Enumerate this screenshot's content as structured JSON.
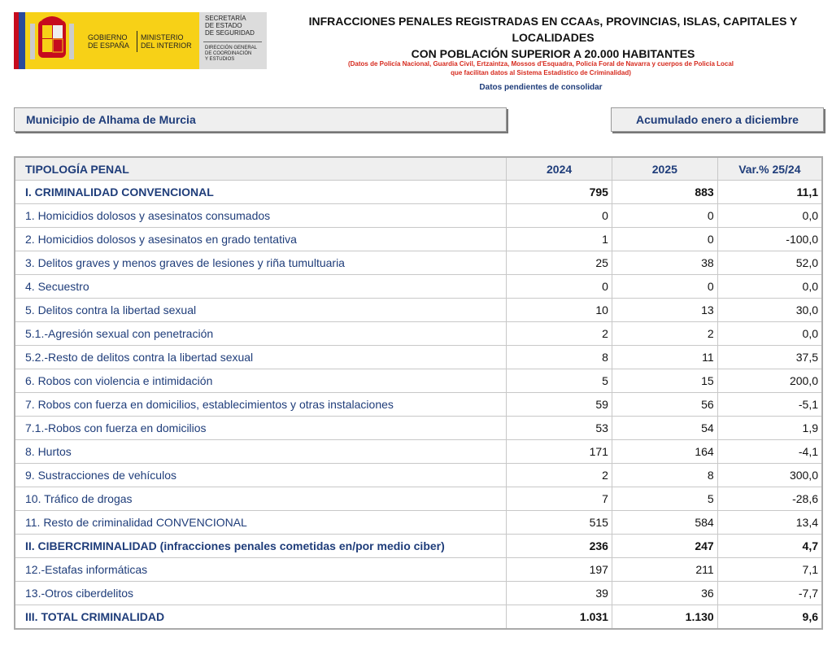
{
  "header": {
    "logo": {
      "gobierno": [
        "GOBIERNO",
        "DE ESPAÑA"
      ],
      "ministerio": [
        "MINISTERIO",
        "DEL INTERIOR"
      ],
      "secretaria": [
        "SECRETARÍA",
        "DE ESTADO",
        "DE SEGURIDAD"
      ],
      "direccion": [
        "DIRECCIÓN GENERAL",
        "DE COORDINACIÓN",
        "Y ESTUDIOS"
      ]
    },
    "title": [
      "INFRACCIONES PENALES REGISTRADAS EN CCAAs, PROVINCIAS, ISLAS, CAPITALES Y LOCALIDADES",
      "CON POBLACIÓN SUPERIOR A 20.000 HABITANTES"
    ],
    "source": [
      "(Datos de Policía Nacional, Guardia Civil, Ertzaintza, Mossos d'Esquadra, Policía Foral de Navarra y cuerpos de Policía Local",
      "que facilitan datos al Sistema Estadístico de Criminalidad)"
    ],
    "note": "Datos pendientes de consolidar"
  },
  "filters": {
    "municipality": "Municipio de Alhama de Murcia",
    "period": "Acumulado enero a diciembre"
  },
  "table": {
    "columns": [
      "TIPOLOGÍA PENAL",
      "2024",
      "2025",
      "Var.% 25/24"
    ],
    "rows": [
      {
        "label": "I. CRIMINALIDAD CONVENCIONAL",
        "v2024": "795",
        "v2025": "883",
        "var": "11,1",
        "bold": true
      },
      {
        "label": "1. Homicidios dolosos y asesinatos consumados",
        "v2024": "0",
        "v2025": "0",
        "var": "0,0",
        "bold": false
      },
      {
        "label": "2. Homicidios dolosos y asesinatos en grado tentativa",
        "v2024": "1",
        "v2025": "0",
        "var": "-100,0",
        "bold": false
      },
      {
        "label": "3. Delitos graves y menos graves de lesiones y riña tumultuaria",
        "v2024": "25",
        "v2025": "38",
        "var": "52,0",
        "bold": false
      },
      {
        "label": "4. Secuestro",
        "v2024": "0",
        "v2025": "0",
        "var": "0,0",
        "bold": false
      },
      {
        "label": "5. Delitos contra la libertad sexual",
        "v2024": "10",
        "v2025": "13",
        "var": "30,0",
        "bold": false
      },
      {
        "label": "5.1.-Agresión sexual con penetración",
        "v2024": "2",
        "v2025": "2",
        "var": "0,0",
        "bold": false
      },
      {
        "label": "5.2.-Resto de delitos contra la libertad sexual",
        "v2024": "8",
        "v2025": "11",
        "var": "37,5",
        "bold": false
      },
      {
        "label": "6. Robos con violencia e intimidación",
        "v2024": "5",
        "v2025": "15",
        "var": "200,0",
        "bold": false
      },
      {
        "label": "7. Robos con fuerza en domicilios, establecimientos y otras instalaciones",
        "v2024": "59",
        "v2025": "56",
        "var": "-5,1",
        "bold": false
      },
      {
        "label": "7.1.-Robos con fuerza en domicilios",
        "v2024": "53",
        "v2025": "54",
        "var": "1,9",
        "bold": false
      },
      {
        "label": "8. Hurtos",
        "v2024": "171",
        "v2025": "164",
        "var": "-4,1",
        "bold": false
      },
      {
        "label": "9. Sustracciones de vehículos",
        "v2024": "2",
        "v2025": "8",
        "var": "300,0",
        "bold": false
      },
      {
        "label": "10. Tráfico de drogas",
        "v2024": "7",
        "v2025": "5",
        "var": "-28,6",
        "bold": false
      },
      {
        "label": "11. Resto de criminalidad CONVENCIONAL",
        "v2024": "515",
        "v2025": "584",
        "var": "13,4",
        "bold": false
      },
      {
        "label": "II. CIBERCRIMINALIDAD (infracciones penales cometidas en/por medio ciber)",
        "v2024": "236",
        "v2025": "247",
        "var": "4,7",
        "bold": true
      },
      {
        "label": "12.-Estafas informáticas",
        "v2024": "197",
        "v2025": "211",
        "var": "7,1",
        "bold": false
      },
      {
        "label": "13.-Otros ciberdelitos",
        "v2024": "39",
        "v2025": "36",
        "var": "-7,7",
        "bold": false
      },
      {
        "label": "III. TOTAL CRIMINALIDAD",
        "v2024": "1.031",
        "v2025": "1.130",
        "var": "9,6",
        "bold": true
      }
    ]
  }
}
